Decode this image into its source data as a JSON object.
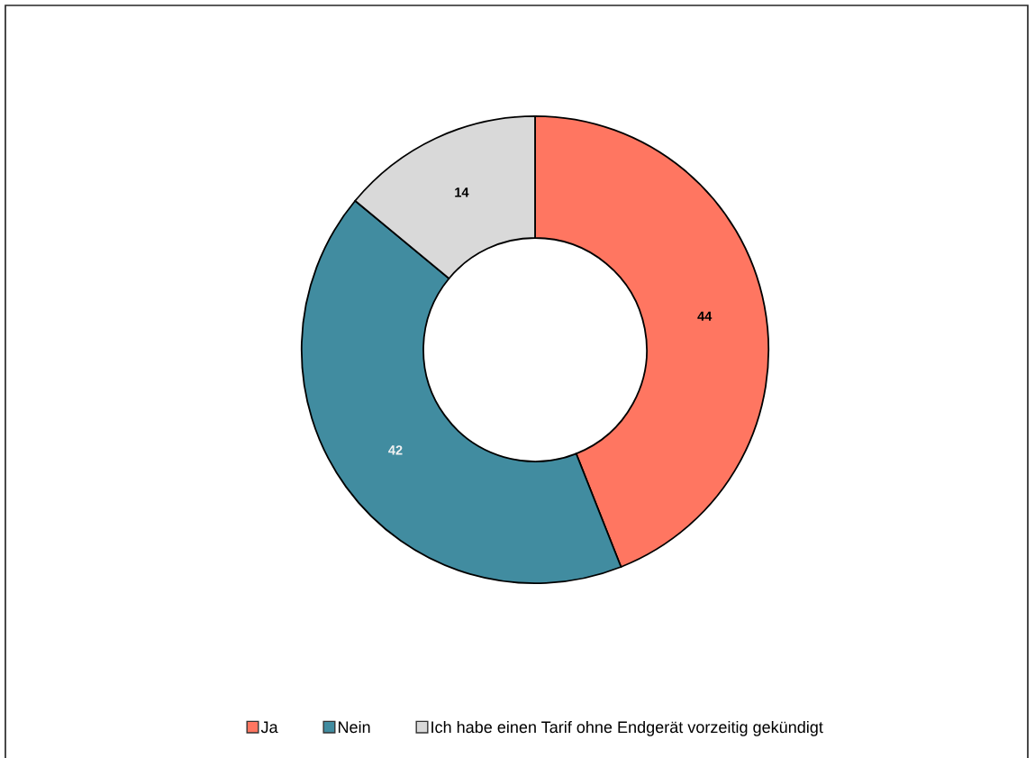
{
  "chart_data": {
    "type": "donut",
    "categories": [
      "Ja",
      "Nein",
      "Ich habe einen Tarif ohne Endgerät vorzeitig gekündigt"
    ],
    "values": [
      44,
      42,
      14
    ],
    "colors": [
      "#ff7661",
      "#418ca0",
      "#d9d9d9"
    ],
    "data_labels": true,
    "legend": "bottom"
  }
}
